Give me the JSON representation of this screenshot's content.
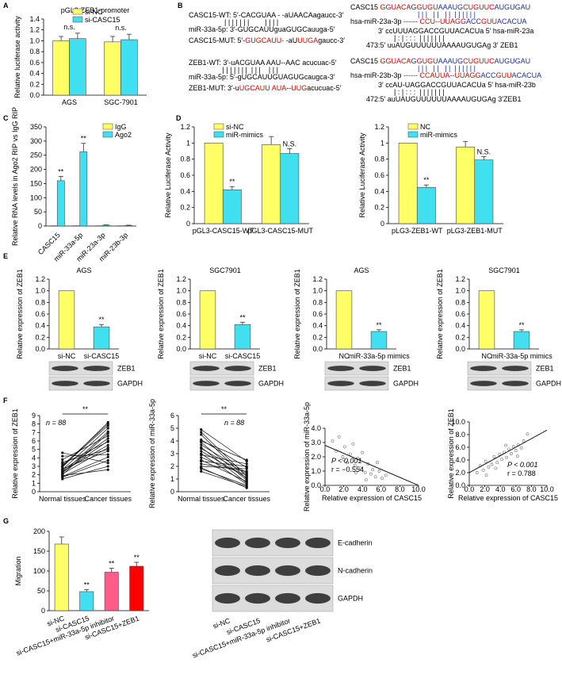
{
  "panel_labels": [
    "A",
    "B",
    "C",
    "D",
    "E",
    "F",
    "G"
  ],
  "sequences": {
    "left": [
      [
        {
          "text": "CASC15-WT: 5′-CACGUAA - -aUAACAagaucc-3′",
          "color": "#000000"
        }
      ],
      [
        {
          "text": "                  | | | | | | |        | | | |",
          "color": "#000000"
        }
      ],
      [
        {
          "text": "miR-33a-5p: 3′-GUGCAUUguaGUGCauuga-5′",
          "color": "#000000"
        }
      ],
      [
        {
          "text": "CASC15-MUT: 5′-",
          "color": "#000000"
        },
        {
          "text": "GUGCAUU-",
          "color": "#e00000"
        },
        {
          "text": " -aU",
          "color": "#000000"
        },
        {
          "text": "UUGA",
          "color": "#e00000"
        },
        {
          "text": "gaucc-3′",
          "color": "#000000"
        }
      ],
      [
        {
          "text": "ZEB1-WT: 3′-uACGUAA AAU--AAC acucuac-5′",
          "color": "#000000"
        }
      ],
      [
        {
          "text": "                 | | | | | | |  | | |    | | |",
          "color": "#000000"
        }
      ],
      [
        {
          "text": "miR-33a-5p: 5′-gUGCAUUGUAGUGcaugca-3′",
          "color": "#000000"
        }
      ],
      [
        {
          "text": "ZEB1-MUT: 3′-u",
          "color": "#000000"
        },
        {
          "text": "UGCAUU",
          "color": "#e00000"
        },
        {
          "text": " ",
          "color": "#000000"
        },
        {
          "text": "AUA",
          "color": "#e00000"
        },
        {
          "text": "--",
          "color": "#000000"
        },
        {
          "text": "UUG",
          "color": "#e00000"
        },
        {
          "text": "acucuac-5′",
          "color": "#000000"
        }
      ]
    ],
    "right": [
      [
        {
          "text": "CASC15 ",
          "color": "#000000"
        },
        {
          "text": "GGUACA",
          "color": "#e00000"
        },
        {
          "text": "G",
          "color": "#1a2fa0"
        },
        {
          "text": "GUGU",
          "color": "#e00000"
        },
        {
          "text": "AAAUG",
          "color": "#1a2fa0"
        },
        {
          "text": "CUGUUC",
          "color": "#e00000"
        },
        {
          "text": "AUGUGAU",
          "color": "#1a2fa0"
        }
      ],
      [
        {
          "text": "                                  | | |   | |   | |  | | | | | |",
          "color": "#1a2fa0"
        }
      ],
      [
        {
          "text": "hsa-miR-23a-3p ",
          "color": "#000000"
        },
        {
          "text": "------ ",
          "color": "#1a2fa0"
        },
        {
          "text": "CCU",
          "color": "#e00000"
        },
        {
          "text": "--",
          "color": "#1a2fa0"
        },
        {
          "text": "UUAGG",
          "color": "#e00000"
        },
        {
          "text": "ACC",
          "color": "#1a2fa0"
        },
        {
          "text": "GUU",
          "color": "#e00000"
        },
        {
          "text": "ACACUA",
          "color": "#1a2fa0"
        }
      ],
      [
        {
          "text": "              3′ ccUUUAGGACCGUUACACUa 5′ hsa-miR-23a",
          "color": "#000000"
        }
      ],
      [
        {
          "text": "                      | : | : : :  | | | | | | |",
          "color": "#000000"
        }
      ],
      [
        {
          "text": "        473:5′ uuAUGUUUUUUAAAAUGUGAg 3′ ZEB1",
          "color": "#000000"
        }
      ],
      [
        {
          "text": "CASC15 ",
          "color": "#000000"
        },
        {
          "text": "GGUACA",
          "color": "#e00000"
        },
        {
          "text": "G",
          "color": "#1a2fa0"
        },
        {
          "text": "GUGU",
          "color": "#e00000"
        },
        {
          "text": "AAAUG",
          "color": "#1a2fa0"
        },
        {
          "text": "CUGUUC",
          "color": "#e00000"
        },
        {
          "text": "AUGUGAU",
          "color": "#1a2fa0"
        }
      ],
      [
        {
          "text": "                                  | | |   | |   | |  | | | | | |",
          "color": "#1a2fa0"
        }
      ],
      [
        {
          "text": "hsa-miR-23b-3p ",
          "color": "#000000"
        },
        {
          "text": "------ ",
          "color": "#1a2fa0"
        },
        {
          "text": "CCAUUA",
          "color": "#e00000"
        },
        {
          "text": "--",
          "color": "#1a2fa0"
        },
        {
          "text": "UUAGG",
          "color": "#e00000"
        },
        {
          "text": "ACC",
          "color": "#1a2fa0"
        },
        {
          "text": "GUU",
          "color": "#e00000"
        },
        {
          "text": "ACACUA",
          "color": "#1a2fa0"
        }
      ],
      [
        {
          "text": "              3′ ccAU-UAGGACCGUUACACUa 5′ hsa-miR-23b",
          "color": "#000000"
        }
      ],
      [
        {
          "text": "                      | : | : : :  | | | | | | |",
          "color": "#000000"
        }
      ],
      [
        {
          "text": "        472:5′ auUAUGUUUUUUAAAAUGUGAg 3′ZEB1",
          "color": "#000000"
        }
      ]
    ]
  },
  "blots": [
    {
      "bands": [
        "ZEB1",
        "GAPDH"
      ],
      "lanes_count": 2
    },
    {
      "bands": [
        "ZEB1",
        "GAPDH"
      ],
      "lanes_count": 2
    },
    {
      "bands": [
        "ZEB1",
        "GAPDH"
      ],
      "lanes_count": 2
    },
    {
      "bands": [
        "ZEB1",
        "GAPDH"
      ],
      "lanes_count": 2
    },
    {
      "bands": [
        "E-cadherin",
        "N-cadherin",
        "GAPDH"
      ],
      "lanes": [
        "si-NC",
        "si-CASC15",
        "si-CASC15+miR-33a-5p inhibitor",
        "si-CASC15+ZEB1"
      ]
    }
  ],
  "chart_data": [
    {
      "type": "bar",
      "title": "pGL3-ZEB1-promoter",
      "ylabel": "Relative luciferase activity",
      "categories": [
        "AGS",
        "SGC-7901"
      ],
      "series": [
        {
          "name": "si-NC",
          "color": "#ffff66",
          "values": [
            1.0,
            0.98
          ],
          "errors": [
            0.08,
            0.1
          ]
        },
        {
          "name": "si-CASC15",
          "color": "#40e0f0",
          "values": [
            1.04,
            1.02
          ],
          "errors": [
            0.1,
            0.1
          ]
        }
      ],
      "group_annotations": [
        "n.s.",
        "n.s."
      ],
      "ylim": [
        0,
        1.4
      ],
      "yticks": [
        {
          "value": 0,
          "label": "0.0"
        },
        0.2,
        0.4,
        0.6,
        0.8,
        {
          "value": 1,
          "label": "1.0"
        },
        1.2,
        1.4
      ]
    },
    {
      "type": "bar",
      "ylabel": "Relative RNA levels in Ago2 RIP vs IgG RIP",
      "categories": [
        "CASC15",
        "miR-33a-5p",
        "miR-23a-3p",
        "miR-23b-3p"
      ],
      "series": [
        {
          "name": "IgG",
          "color": "#ffff66",
          "values": [
            1,
            1,
            1,
            1
          ]
        },
        {
          "name": "Ago2",
          "color": "#40e0f0",
          "values": [
            160,
            262,
            3,
            2
          ],
          "errors": [
            15,
            30,
            1,
            1
          ],
          "annotations": [
            "**",
            "**",
            null,
            null
          ]
        }
      ],
      "ylim": [
        0,
        350
      ],
      "yticks": [
        0,
        50,
        100,
        150,
        200,
        250,
        300,
        350
      ]
    },
    {
      "type": "bar",
      "ylabel": "Relative Luciferase Activity",
      "categories": [
        "pGL3-CASC15-WT",
        "pGL3-CASC15-MUT"
      ],
      "series": [
        {
          "name": "si-NC",
          "color": "#ffff66",
          "values": [
            1.0,
            0.98
          ],
          "errors": [
            null,
            0.1
          ]
        },
        {
          "name": "miR-mimics",
          "color": "#40e0f0",
          "values": [
            0.42,
            0.87
          ],
          "errors": [
            0.04,
            0.06
          ],
          "annotations": [
            "**",
            "N.S."
          ]
        }
      ],
      "ylim": [
        0,
        1.2
      ],
      "yticks": [
        0,
        0.2,
        0.4,
        0.6,
        0.8,
        1,
        1.2
      ]
    },
    {
      "type": "bar",
      "ylabel": "Relative Luciferase Activity",
      "categories": [
        "pLG3-ZEB1-WT",
        "pLG3-ZEB1-MUT"
      ],
      "series": [
        {
          "name": "NC",
          "color": "#ffff66",
          "values": [
            1.0,
            0.95
          ],
          "errors": [
            null,
            0.07
          ]
        },
        {
          "name": "miR-mimics",
          "color": "#40e0f0",
          "values": [
            0.45,
            0.79
          ],
          "errors": [
            0.03,
            0.04
          ],
          "annotations": [
            "**",
            "N.S."
          ]
        }
      ],
      "ylim": [
        0,
        1.2
      ],
      "yticks": [
        0,
        0.2,
        0.4,
        0.6,
        0.8,
        1,
        1.2
      ]
    },
    {
      "type": "bar",
      "title": "AGS",
      "ylabel": "Relative expression of ZEB1",
      "categories": [
        "si-NC",
        "si-CASC15"
      ],
      "values": [
        1.0,
        0.38
      ],
      "errors": [
        null,
        0.04
      ],
      "annotations": [
        null,
        "**"
      ],
      "colors": [
        "#ffff66",
        "#40e0f0"
      ],
      "ylim": [
        0,
        1.2
      ],
      "yticks": [
        {
          "value": 0,
          "label": "0.0"
        },
        0.2,
        0.4,
        0.6,
        0.8,
        {
          "value": 1,
          "label": "1.0"
        },
        1.2
      ]
    },
    {
      "type": "bar",
      "title": "SGC7901",
      "ylabel": "Relative expression of ZEB1",
      "categories": [
        "si-NC",
        "si-CASC15"
      ],
      "values": [
        1.0,
        0.42
      ],
      "errors": [
        null,
        0.04
      ],
      "annotations": [
        null,
        "**"
      ],
      "colors": [
        "#ffff66",
        "#40e0f0"
      ],
      "ylim": [
        0,
        1.2
      ],
      "yticks": [
        {
          "value": 0,
          "label": "0.0"
        },
        0.2,
        0.4,
        0.6,
        0.8,
        {
          "value": 1,
          "label": "1.0"
        },
        1.2
      ]
    },
    {
      "type": "bar",
      "title": "AGS",
      "ylabel": "Relative expression of ZEB1",
      "categories": [
        "NC",
        "miR-33a-5p mimics"
      ],
      "values": [
        1.0,
        0.3
      ],
      "errors": [
        null,
        0.03
      ],
      "annotations": [
        null,
        "**"
      ],
      "colors": [
        "#ffff66",
        "#40e0f0"
      ],
      "ylim": [
        0,
        1.2
      ],
      "yticks": [
        {
          "value": 0,
          "label": "0.0"
        },
        0.2,
        0.4,
        0.6,
        0.8,
        {
          "value": 1,
          "label": "1.0"
        },
        1.2
      ]
    },
    {
      "type": "bar",
      "title": "SGC7901",
      "ylabel": "Relative expression of ZEB1",
      "categories": [
        "NC",
        "miR-33a-5p mimics"
      ],
      "values": [
        1.0,
        0.3
      ],
      "errors": [
        null,
        0.03
      ],
      "annotations": [
        null,
        "**"
      ],
      "colors": [
        "#ffff66",
        "#40e0f0"
      ],
      "ylim": [
        0,
        1.2
      ],
      "yticks": [
        {
          "value": 0,
          "label": "0.0"
        },
        0.2,
        0.4,
        0.6,
        0.8,
        {
          "value": 1,
          "label": "1.0"
        },
        1.2
      ]
    },
    {
      "type": "paired",
      "ylabel": "Relative expression of ZEB1",
      "n_label": "n = 88",
      "significance": "**",
      "categories": [
        "Normal tissues",
        "Cancer tissues"
      ],
      "pairs": [
        [
          2.1,
          5.2
        ],
        [
          3.0,
          7.8
        ],
        [
          1.8,
          4.1
        ],
        [
          2.5,
          6.3
        ],
        [
          4.6,
          3.4
        ],
        [
          2.9,
          8.2
        ],
        [
          1.5,
          3.0
        ],
        [
          3.3,
          5.9
        ],
        [
          2.2,
          7.1
        ],
        [
          2.7,
          4.8
        ],
        [
          3.8,
          6.6
        ],
        [
          1.9,
          2.6
        ],
        [
          2.4,
          5.5
        ],
        [
          3.1,
          8.0
        ],
        [
          2.0,
          6.9
        ],
        [
          4.2,
          4.4
        ],
        [
          1.7,
          3.7
        ],
        [
          2.6,
          7.5
        ],
        [
          3.5,
          5.0
        ],
        [
          2.3,
          6.0
        ]
      ],
      "ylim": [
        0,
        9
      ],
      "yticks": [
        0,
        1,
        2,
        3,
        4,
        5,
        6,
        7,
        8,
        9
      ]
    },
    {
      "type": "paired",
      "ylabel": "Relative expression of miR-33a-5p",
      "n_label": "n = 88",
      "significance": "**",
      "categories": [
        "Normal tissues",
        "Cancer tissues"
      ],
      "pairs": [
        [
          4.9,
          2.4
        ],
        [
          3.2,
          1.1
        ],
        [
          2.5,
          0.8
        ],
        [
          4.1,
          1.9
        ],
        [
          1.8,
          0.5
        ],
        [
          3.7,
          1.5
        ],
        [
          2.9,
          2.2
        ],
        [
          4.5,
          1.0
        ],
        [
          2.2,
          1.6
        ],
        [
          3.5,
          0.7
        ],
        [
          1.6,
          0.4
        ],
        [
          4.0,
          2.5
        ],
        [
          2.7,
          1.3
        ],
        [
          3.9,
          0.9
        ],
        [
          2.0,
          1.8
        ],
        [
          4.7,
          1.2
        ],
        [
          3.0,
          0.6
        ],
        [
          2.4,
          2.0
        ],
        [
          3.4,
          1.4
        ],
        [
          1.9,
          0.3
        ]
      ],
      "ylim": [
        0,
        6
      ],
      "yticks": [
        0,
        1,
        2,
        3,
        4,
        5,
        6
      ]
    },
    {
      "type": "scatter",
      "xlabel": "Relative expression of CASC15",
      "ylabel": "Relative expression of miR-33a-5p",
      "stats": [
        "P < 0.001",
        "r = −0.554"
      ],
      "x": [
        0.8,
        1.2,
        1.5,
        1.9,
        2.1,
        2.4,
        2.7,
        3.0,
        3.2,
        3.5,
        3.8,
        4.0,
        4.3,
        4.6,
        4.9,
        5.1,
        5.4,
        5.8,
        6.1,
        6.5,
        2.0,
        3.3,
        4.4,
        5.6
      ],
      "y": [
        3.1,
        2.4,
        3.4,
        2.0,
        2.7,
        1.6,
        2.2,
        2.9,
        1.4,
        1.9,
        1.2,
        2.3,
        0.9,
        1.5,
        0.8,
        1.1,
        0.6,
        1.0,
        0.5,
        0.7,
        1.8,
        0.9,
        0.4,
        1.6
      ],
      "trend_line": {
        "x": [
          0,
          10
        ],
        "y": [
          2.8,
          0
        ]
      },
      "xlim": [
        0,
        10
      ],
      "ylim": [
        0,
        4
      ],
      "xticks": [
        {
          "value": 0,
          "label": "0.0"
        },
        {
          "value": 2,
          "label": "2.0"
        },
        {
          "value": 4,
          "label": "4.0"
        },
        {
          "value": 6,
          "label": "6.0"
        },
        {
          "value": 8,
          "label": "8.0"
        },
        {
          "value": 10,
          "label": "10.0"
        }
      ],
      "yticks": [
        {
          "value": 0,
          "label": "0.0"
        },
        {
          "value": 1,
          "label": "1.0"
        },
        {
          "value": 2,
          "label": "2.0"
        },
        {
          "value": 3,
          "label": "3.0"
        },
        {
          "value": 4,
          "label": "4.0"
        }
      ]
    },
    {
      "type": "scatter",
      "xlabel": "Relative expression of CASC15",
      "ylabel": "Relative expression of ZEB1",
      "stats": [
        "P < 0.001",
        "r = 0.788"
      ],
      "x": [
        1.0,
        1.4,
        1.8,
        2.1,
        2.5,
        2.9,
        3.2,
        3.6,
        3.9,
        4.2,
        4.5,
        4.8,
        5.1,
        5.4,
        5.7,
        6.0,
        6.3,
        6.7,
        7.0,
        7.5,
        2.2,
        3.4,
        4.7,
        6.2
      ],
      "y": [
        2.0,
        3.1,
        2.4,
        3.8,
        2.9,
        3.3,
        4.5,
        3.6,
        4.9,
        4.1,
        5.2,
        4.4,
        5.7,
        5.0,
        6.1,
        5.5,
        6.4,
        5.9,
        7.0,
        8.1,
        1.6,
        2.7,
        6.3,
        4.6
      ],
      "trend_line": {
        "x": [
          0,
          10
        ],
        "y": [
          2.0,
          8.7
        ]
      },
      "xlim": [
        0,
        10
      ],
      "ylim": [
        0,
        10
      ],
      "xticks": [
        {
          "value": 0,
          "label": "0.0"
        },
        {
          "value": 2,
          "label": "2.0"
        },
        {
          "value": 4,
          "label": "4.0"
        },
        {
          "value": 6,
          "label": "6.0"
        },
        {
          "value": 8,
          "label": "8.0"
        },
        {
          "value": 10,
          "label": "10.0"
        }
      ],
      "yticks": [
        {
          "value": 0,
          "label": "0.0"
        },
        {
          "value": 2,
          "label": "2.0"
        },
        {
          "value": 4,
          "label": "4.0"
        },
        {
          "value": 6,
          "label": "6.0"
        },
        {
          "value": 8,
          "label": "8.0"
        },
        {
          "value": 10,
          "label": "10.0"
        }
      ]
    },
    {
      "type": "bar",
      "ylabel": "Migration",
      "categories": [
        "si-NC",
        "si-CASC15",
        "si-CASC15+miR-33a-5p inhibitor",
        "si-CASC15+ZEB1"
      ],
      "values": [
        168,
        48,
        97,
        112
      ],
      "errors": [
        18,
        5,
        10,
        10
      ],
      "annotations": [
        null,
        "**",
        "**",
        "**"
      ],
      "colors": [
        "#ffff66",
        "#40e0f0",
        "#ff5c8a",
        "#ff0000"
      ],
      "ylim": [
        0,
        200
      ],
      "yticks": [
        0,
        50,
        100,
        150,
        200
      ]
    }
  ]
}
